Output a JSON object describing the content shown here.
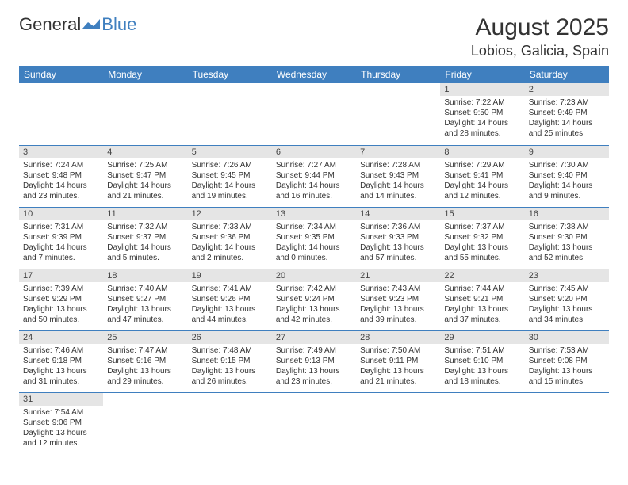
{
  "logo": {
    "part1": "General",
    "part2": "Blue"
  },
  "title": "August 2025",
  "location": "Lobios, Galicia, Spain",
  "colors": {
    "accent": "#3f7fbf",
    "daybar_bg": "#e5e5e5",
    "text": "#333333",
    "bg": "#ffffff"
  },
  "weekdays": [
    "Sunday",
    "Monday",
    "Tuesday",
    "Wednesday",
    "Thursday",
    "Friday",
    "Saturday"
  ],
  "weeks": [
    [
      null,
      null,
      null,
      null,
      null,
      {
        "n": "1",
        "sr": "Sunrise: 7:22 AM",
        "ss": "Sunset: 9:50 PM",
        "d1": "Daylight: 14 hours",
        "d2": "and 28 minutes."
      },
      {
        "n": "2",
        "sr": "Sunrise: 7:23 AM",
        "ss": "Sunset: 9:49 PM",
        "d1": "Daylight: 14 hours",
        "d2": "and 25 minutes."
      }
    ],
    [
      {
        "n": "3",
        "sr": "Sunrise: 7:24 AM",
        "ss": "Sunset: 9:48 PM",
        "d1": "Daylight: 14 hours",
        "d2": "and 23 minutes."
      },
      {
        "n": "4",
        "sr": "Sunrise: 7:25 AM",
        "ss": "Sunset: 9:47 PM",
        "d1": "Daylight: 14 hours",
        "d2": "and 21 minutes."
      },
      {
        "n": "5",
        "sr": "Sunrise: 7:26 AM",
        "ss": "Sunset: 9:45 PM",
        "d1": "Daylight: 14 hours",
        "d2": "and 19 minutes."
      },
      {
        "n": "6",
        "sr": "Sunrise: 7:27 AM",
        "ss": "Sunset: 9:44 PM",
        "d1": "Daylight: 14 hours",
        "d2": "and 16 minutes."
      },
      {
        "n": "7",
        "sr": "Sunrise: 7:28 AM",
        "ss": "Sunset: 9:43 PM",
        "d1": "Daylight: 14 hours",
        "d2": "and 14 minutes."
      },
      {
        "n": "8",
        "sr": "Sunrise: 7:29 AM",
        "ss": "Sunset: 9:41 PM",
        "d1": "Daylight: 14 hours",
        "d2": "and 12 minutes."
      },
      {
        "n": "9",
        "sr": "Sunrise: 7:30 AM",
        "ss": "Sunset: 9:40 PM",
        "d1": "Daylight: 14 hours",
        "d2": "and 9 minutes."
      }
    ],
    [
      {
        "n": "10",
        "sr": "Sunrise: 7:31 AM",
        "ss": "Sunset: 9:39 PM",
        "d1": "Daylight: 14 hours",
        "d2": "and 7 minutes."
      },
      {
        "n": "11",
        "sr": "Sunrise: 7:32 AM",
        "ss": "Sunset: 9:37 PM",
        "d1": "Daylight: 14 hours",
        "d2": "and 5 minutes."
      },
      {
        "n": "12",
        "sr": "Sunrise: 7:33 AM",
        "ss": "Sunset: 9:36 PM",
        "d1": "Daylight: 14 hours",
        "d2": "and 2 minutes."
      },
      {
        "n": "13",
        "sr": "Sunrise: 7:34 AM",
        "ss": "Sunset: 9:35 PM",
        "d1": "Daylight: 14 hours",
        "d2": "and 0 minutes."
      },
      {
        "n": "14",
        "sr": "Sunrise: 7:36 AM",
        "ss": "Sunset: 9:33 PM",
        "d1": "Daylight: 13 hours",
        "d2": "and 57 minutes."
      },
      {
        "n": "15",
        "sr": "Sunrise: 7:37 AM",
        "ss": "Sunset: 9:32 PM",
        "d1": "Daylight: 13 hours",
        "d2": "and 55 minutes."
      },
      {
        "n": "16",
        "sr": "Sunrise: 7:38 AM",
        "ss": "Sunset: 9:30 PM",
        "d1": "Daylight: 13 hours",
        "d2": "and 52 minutes."
      }
    ],
    [
      {
        "n": "17",
        "sr": "Sunrise: 7:39 AM",
        "ss": "Sunset: 9:29 PM",
        "d1": "Daylight: 13 hours",
        "d2": "and 50 minutes."
      },
      {
        "n": "18",
        "sr": "Sunrise: 7:40 AM",
        "ss": "Sunset: 9:27 PM",
        "d1": "Daylight: 13 hours",
        "d2": "and 47 minutes."
      },
      {
        "n": "19",
        "sr": "Sunrise: 7:41 AM",
        "ss": "Sunset: 9:26 PM",
        "d1": "Daylight: 13 hours",
        "d2": "and 44 minutes."
      },
      {
        "n": "20",
        "sr": "Sunrise: 7:42 AM",
        "ss": "Sunset: 9:24 PM",
        "d1": "Daylight: 13 hours",
        "d2": "and 42 minutes."
      },
      {
        "n": "21",
        "sr": "Sunrise: 7:43 AM",
        "ss": "Sunset: 9:23 PM",
        "d1": "Daylight: 13 hours",
        "d2": "and 39 minutes."
      },
      {
        "n": "22",
        "sr": "Sunrise: 7:44 AM",
        "ss": "Sunset: 9:21 PM",
        "d1": "Daylight: 13 hours",
        "d2": "and 37 minutes."
      },
      {
        "n": "23",
        "sr": "Sunrise: 7:45 AM",
        "ss": "Sunset: 9:20 PM",
        "d1": "Daylight: 13 hours",
        "d2": "and 34 minutes."
      }
    ],
    [
      {
        "n": "24",
        "sr": "Sunrise: 7:46 AM",
        "ss": "Sunset: 9:18 PM",
        "d1": "Daylight: 13 hours",
        "d2": "and 31 minutes."
      },
      {
        "n": "25",
        "sr": "Sunrise: 7:47 AM",
        "ss": "Sunset: 9:16 PM",
        "d1": "Daylight: 13 hours",
        "d2": "and 29 minutes."
      },
      {
        "n": "26",
        "sr": "Sunrise: 7:48 AM",
        "ss": "Sunset: 9:15 PM",
        "d1": "Daylight: 13 hours",
        "d2": "and 26 minutes."
      },
      {
        "n": "27",
        "sr": "Sunrise: 7:49 AM",
        "ss": "Sunset: 9:13 PM",
        "d1": "Daylight: 13 hours",
        "d2": "and 23 minutes."
      },
      {
        "n": "28",
        "sr": "Sunrise: 7:50 AM",
        "ss": "Sunset: 9:11 PM",
        "d1": "Daylight: 13 hours",
        "d2": "and 21 minutes."
      },
      {
        "n": "29",
        "sr": "Sunrise: 7:51 AM",
        "ss": "Sunset: 9:10 PM",
        "d1": "Daylight: 13 hours",
        "d2": "and 18 minutes."
      },
      {
        "n": "30",
        "sr": "Sunrise: 7:53 AM",
        "ss": "Sunset: 9:08 PM",
        "d1": "Daylight: 13 hours",
        "d2": "and 15 minutes."
      }
    ],
    [
      {
        "n": "31",
        "sr": "Sunrise: 7:54 AM",
        "ss": "Sunset: 9:06 PM",
        "d1": "Daylight: 13 hours",
        "d2": "and 12 minutes."
      },
      null,
      null,
      null,
      null,
      null,
      null
    ]
  ]
}
